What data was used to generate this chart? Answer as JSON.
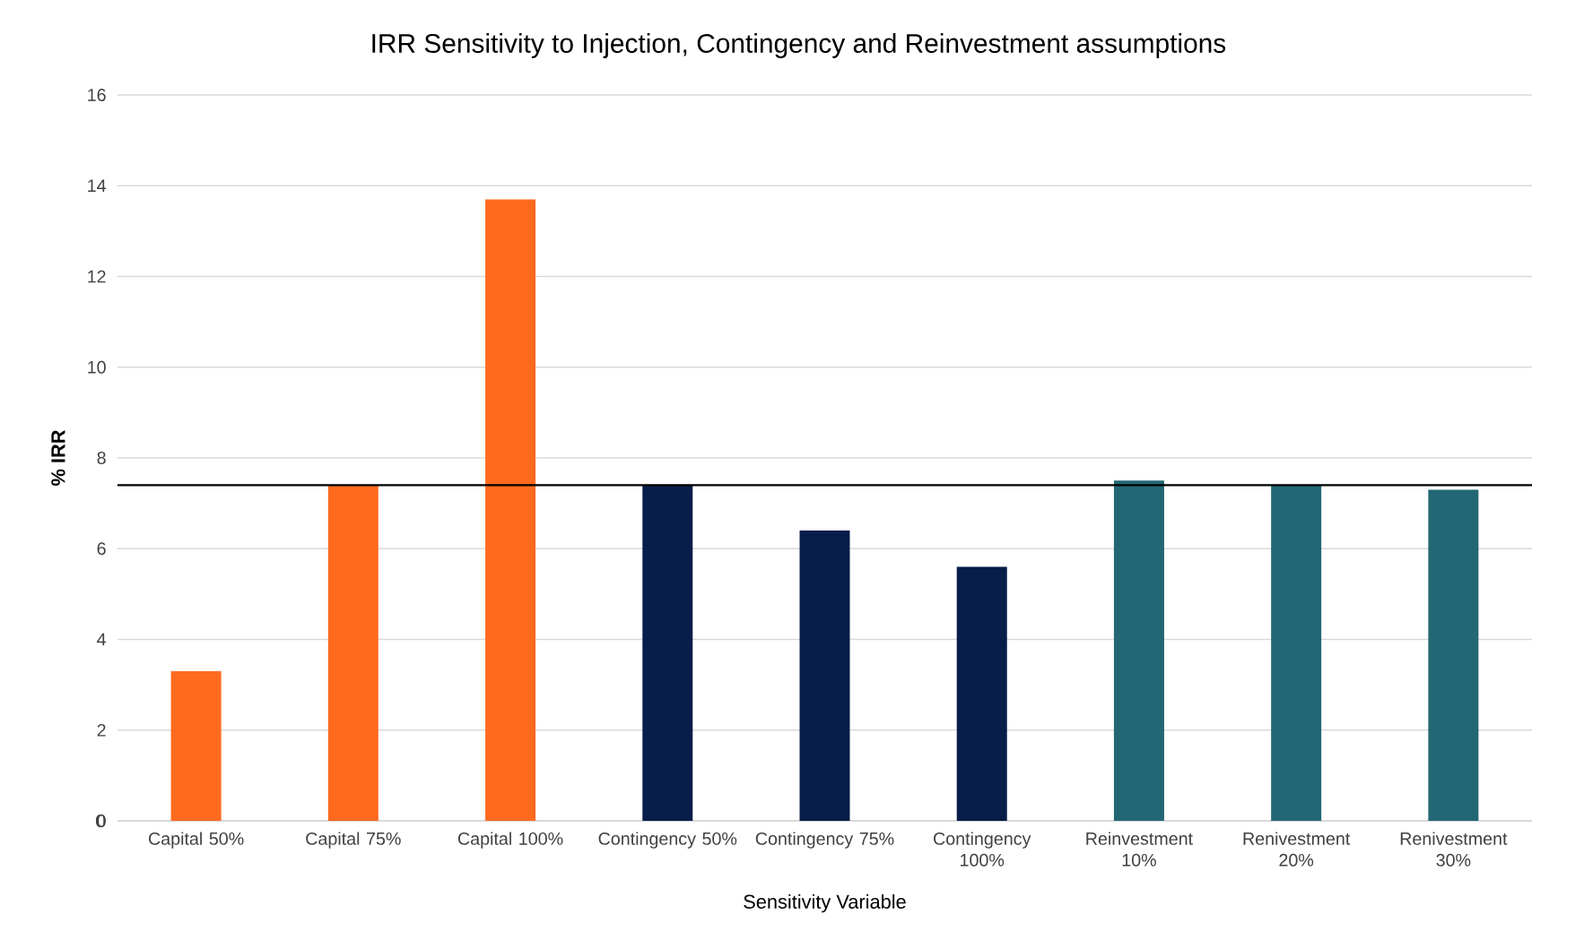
{
  "chart_data": {
    "type": "bar",
    "title": "IRR Sensitivity to Injection, Contingency and Reinvestment assumptions",
    "xlabel": "Sensitivity Variable",
    "ylabel": "% IRR",
    "categories": [
      "Capital 50%",
      "Capital 75%",
      "Capital 100%",
      "Contingency 50%",
      "Contingency 75%",
      "Contingency 100%",
      "Reinvestment 10%",
      "Renivestment 20%",
      "Renivestment 30%"
    ],
    "values": [
      3.3,
      7.4,
      13.7,
      7.4,
      6.4,
      5.6,
      7.5,
      7.4,
      7.3
    ],
    "colors": [
      "#ff6a1f",
      "#ff6a1f",
      "#ff6a1f",
      "#071e4a",
      "#071e4a",
      "#071e4a",
      "#236774",
      "#236774",
      "#236774"
    ],
    "ylim": [
      0,
      16
    ],
    "yticks": [
      0,
      2,
      4,
      6,
      8,
      10,
      12,
      14,
      16
    ],
    "grid": "y",
    "ref_lines": [
      {
        "axis": "y",
        "value": 7.4,
        "color": "#000000"
      }
    ]
  }
}
